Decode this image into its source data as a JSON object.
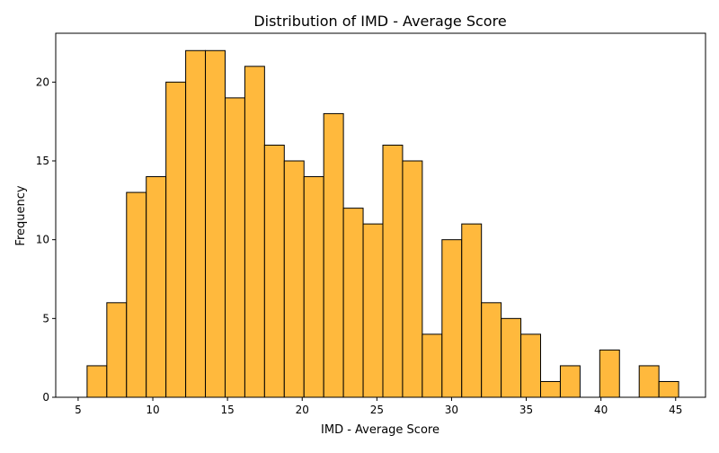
{
  "chart_data": {
    "type": "bar",
    "subtype": "histogram",
    "title": "Distribution of IMD - Average Score",
    "xlabel": "IMD - Average Score",
    "ylabel": "Frequency",
    "xlim": [
      3.5,
      47.0
    ],
    "ylim": [
      0,
      23.1
    ],
    "xticks": [
      5,
      10,
      15,
      20,
      25,
      30,
      35,
      40,
      45
    ],
    "yticks": [
      0,
      5,
      10,
      15,
      20
    ],
    "bin_start": 5.6,
    "bin_width": 1.32,
    "values": [
      2,
      6,
      13,
      14,
      20,
      22,
      22,
      19,
      21,
      16,
      15,
      14,
      18,
      12,
      11,
      16,
      15,
      4,
      10,
      11,
      6,
      5,
      4,
      1,
      2,
      0,
      3,
      0,
      2,
      1
    ],
    "bar_color": "#ffb93d",
    "edge_color": "#000000",
    "grid": false,
    "legend": "none"
  }
}
